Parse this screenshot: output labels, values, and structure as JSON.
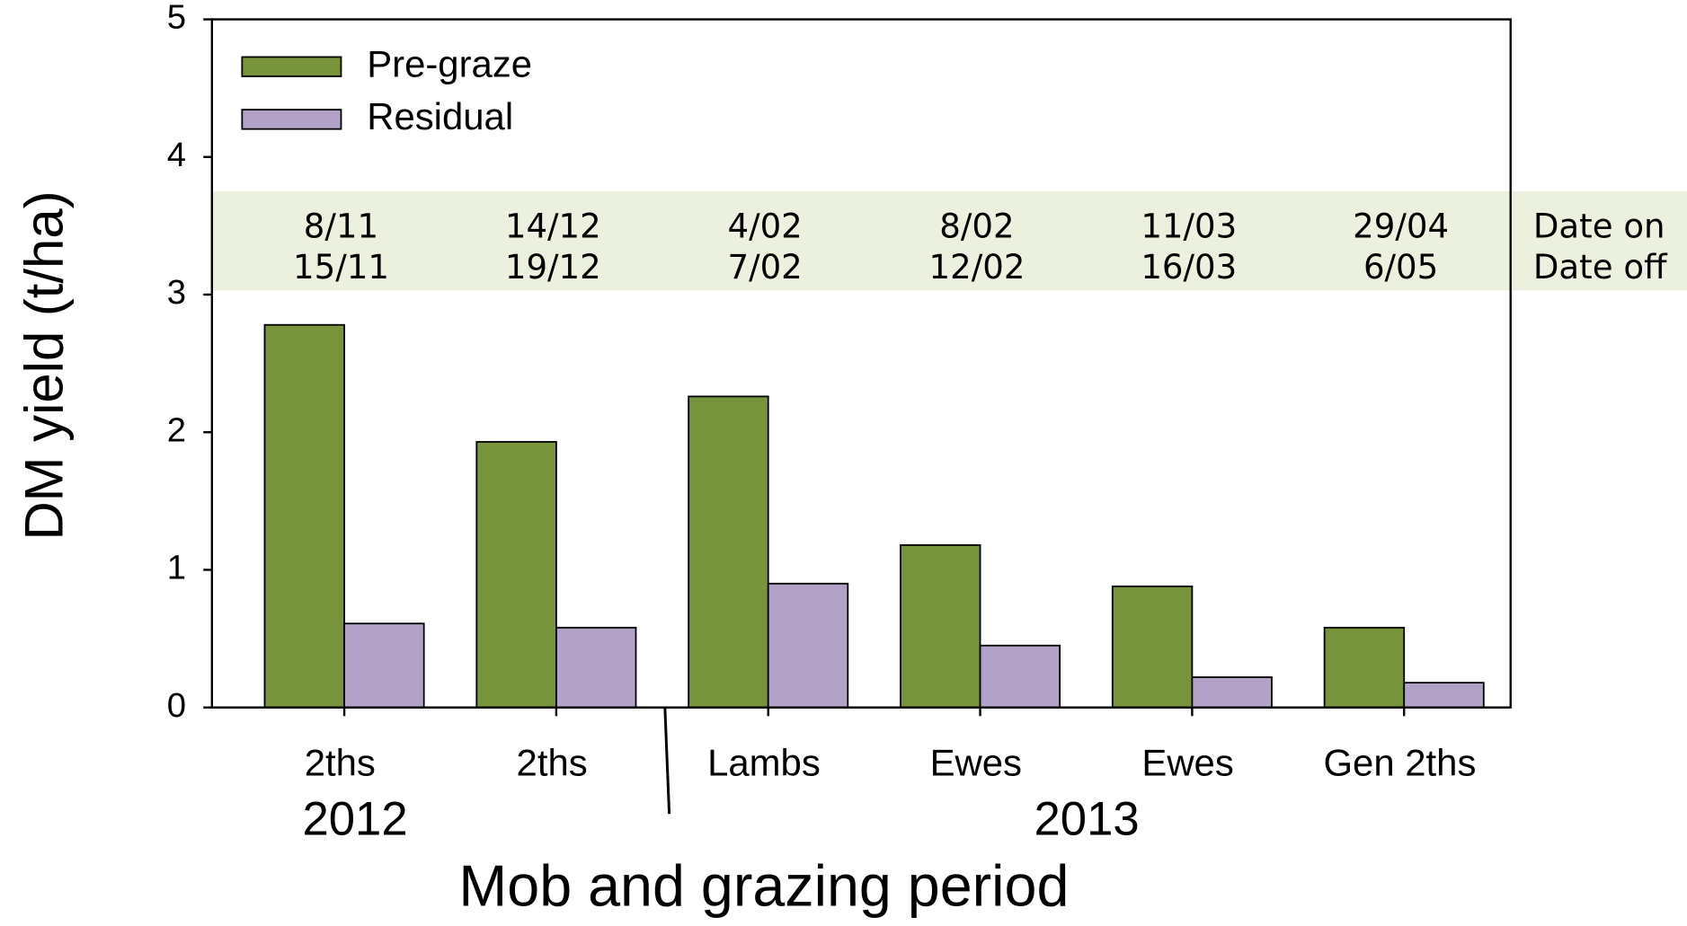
{
  "chart_data": {
    "type": "bar",
    "ylabel": "DM yield (t/ha)",
    "xlabel": "Mob and grazing period",
    "categories": [
      "2ths",
      "2ths",
      "Lambs",
      "Ewes",
      "Ewes",
      "Gen 2ths"
    ],
    "series": [
      {
        "name": "Pre-graze",
        "color": "#77933c",
        "values": [
          2.78,
          1.93,
          2.26,
          1.18,
          0.88,
          0.58
        ]
      },
      {
        "name": "Residual",
        "color": "#b3a2c7",
        "values": [
          0.61,
          0.58,
          0.9,
          0.45,
          0.22,
          0.18
        ]
      }
    ],
    "dates_on": [
      "8/11",
      "14/12",
      "4/02",
      "8/02",
      "11/03",
      "29/04"
    ],
    "dates_off": [
      "15/11",
      "19/12",
      "7/02",
      "12/02",
      "16/03",
      "6/05"
    ],
    "date_on_label": "Date on",
    "date_off_label": "Date off",
    "years": [
      "2012",
      "2013"
    ],
    "ylim": [
      0,
      5
    ],
    "yticks": [
      0,
      1,
      2,
      3,
      4,
      5
    ],
    "legend": "upper left"
  }
}
